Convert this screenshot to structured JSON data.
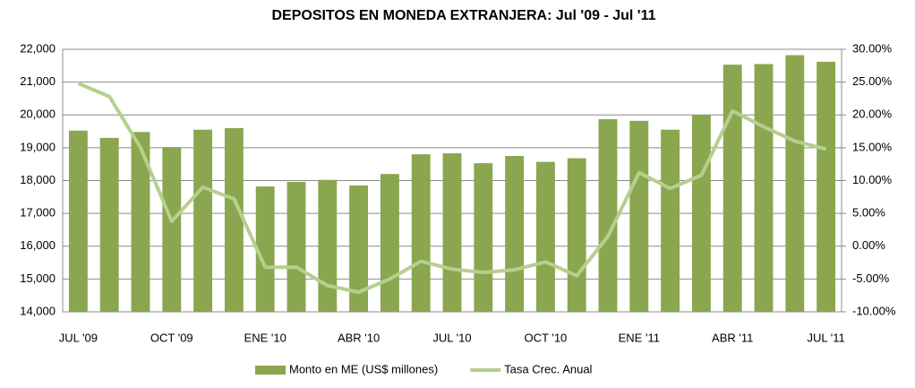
{
  "chart_data": {
    "type": "bar-line",
    "title": "DEPOSITOS EN MONEDA EXTRANJERA: Jul '09 - Jul '11",
    "categories": [
      "JUL '09",
      null,
      null,
      "OCT '09",
      null,
      null,
      "ENE '10",
      null,
      null,
      "ABR '10",
      null,
      null,
      "JUL '10",
      null,
      null,
      "OCT '10",
      null,
      null,
      "ENE '11",
      null,
      null,
      "ABR '11",
      null,
      null,
      "JUL '11"
    ],
    "series": [
      {
        "name": "Monto en ME (US$ millones)",
        "type": "bar",
        "color": "#8aa64e",
        "values": [
          19520,
          19300,
          19480,
          19020,
          19550,
          19600,
          17820,
          17960,
          18020,
          17850,
          18200,
          18800,
          18830,
          18530,
          18750,
          18570,
          18680,
          19870,
          19820,
          19550,
          20000,
          21530,
          21550,
          21820,
          21620
        ]
      },
      {
        "name": "Tasa Crec. Anual",
        "type": "line",
        "axis": "y2",
        "color": "#b5cf8f",
        "values": [
          24.8,
          22.8,
          15,
          3.8,
          9,
          7.2,
          -3.2,
          -3.2,
          -6,
          -7,
          -5,
          -2.3,
          -3.5,
          -4,
          -3.6,
          -2.4,
          -4.5,
          1.5,
          11.2,
          8.8,
          10.8,
          20.6,
          18.2,
          16,
          14.8
        ]
      }
    ],
    "ylim": [
      14000,
      22000
    ],
    "yticks": [
      {
        "value": 14000,
        "label": "14,000"
      },
      {
        "value": 15000,
        "label": "15,000"
      },
      {
        "value": 16000,
        "label": "16,000"
      },
      {
        "value": 17000,
        "label": "17,000"
      },
      {
        "value": 18000,
        "label": "18,000"
      },
      {
        "value": 19000,
        "label": "19,000"
      },
      {
        "value": 20000,
        "label": "20,000"
      },
      {
        "value": 21000,
        "label": "21,000"
      },
      {
        "value": 22000,
        "label": "22,000"
      }
    ],
    "y2lim": [
      -10,
      30
    ],
    "y2ticks": [
      {
        "value": -10,
        "label": "-10.00%"
      },
      {
        "value": -5,
        "label": "-5.00%"
      },
      {
        "value": 0,
        "label": "0.00%"
      },
      {
        "value": 5,
        "label": "5.00%"
      },
      {
        "value": 10,
        "label": "10.00%"
      },
      {
        "value": 15,
        "label": "15.00%"
      },
      {
        "value": 20,
        "label": "20.00%"
      },
      {
        "value": 25,
        "label": "25.00%"
      },
      {
        "value": 30,
        "label": "30.00%"
      }
    ],
    "grid": true,
    "legend": "bottom"
  }
}
